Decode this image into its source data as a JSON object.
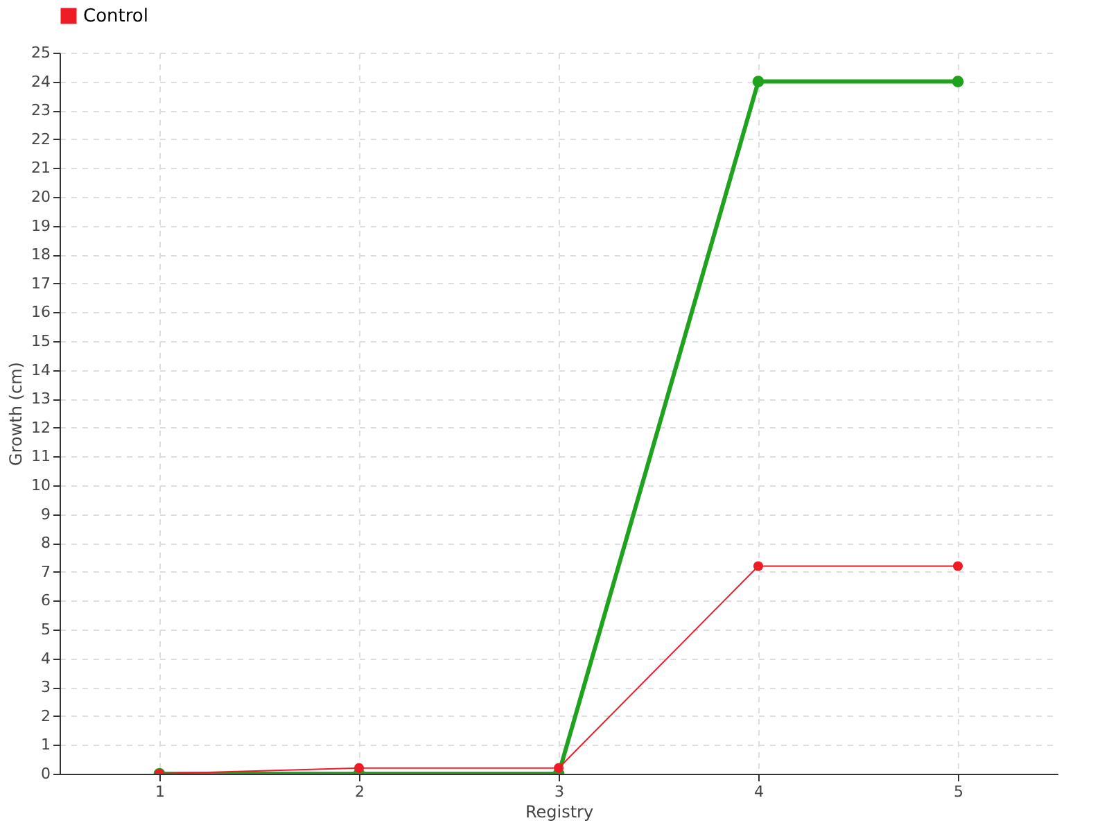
{
  "chart_data": {
    "type": "line",
    "xlabel": "Registry",
    "ylabel": "Growth (cm)",
    "x": [
      1,
      2,
      3,
      4,
      5
    ],
    "xlim": [
      0.5,
      5.5
    ],
    "xticks": [
      1,
      2,
      3,
      4,
      5
    ],
    "ylim": [
      0,
      25
    ],
    "yticks": [
      0,
      1,
      2,
      3,
      4,
      5,
      6,
      7,
      8,
      9,
      10,
      11,
      12,
      13,
      14,
      15,
      16,
      17,
      18,
      19,
      20,
      21,
      22,
      23,
      24,
      25
    ],
    "series": [
      {
        "color": "#1fa31f",
        "values": [
          0,
          0,
          0,
          24,
          24
        ]
      },
      {
        "name": "Control",
        "color": "#ee1c25",
        "values": [
          0,
          0.2,
          0.2,
          7.2,
          7.2
        ]
      }
    ],
    "grid": true,
    "legend": "top left",
    "marker": "circle",
    "line_style": "solid"
  }
}
